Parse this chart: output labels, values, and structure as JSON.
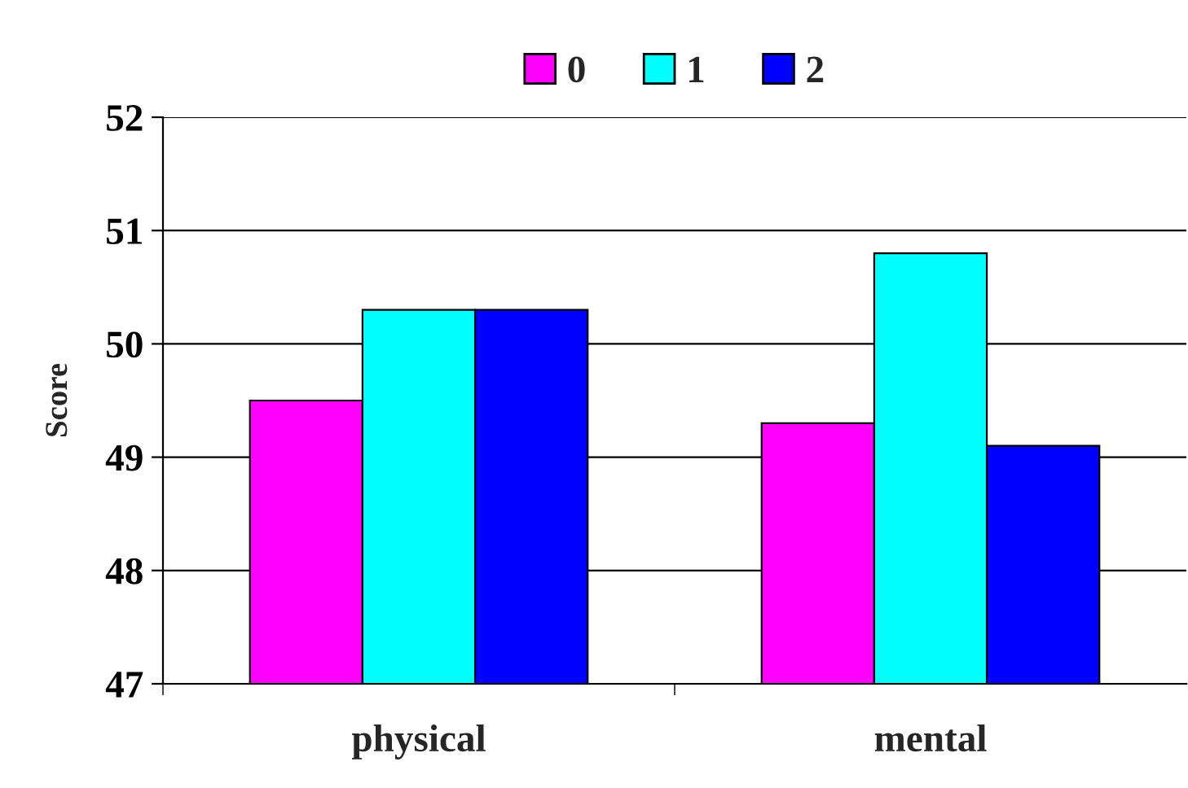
{
  "chart_data": {
    "type": "bar",
    "ylabel": "Score",
    "categories": [
      "physical",
      "mental"
    ],
    "series": [
      {
        "name": "0",
        "color": "#ff00ff",
        "values": [
          49.5,
          49.3
        ]
      },
      {
        "name": "1",
        "color": "#00ffff",
        "values": [
          50.3,
          50.8
        ]
      },
      {
        "name": "2",
        "color": "#0000ff",
        "values": [
          50.3,
          49.1
        ]
      }
    ],
    "ylim": [
      47,
      52
    ],
    "yticks": [
      47,
      48,
      49,
      50,
      51,
      52
    ],
    "grid": "y",
    "legend": "top"
  }
}
